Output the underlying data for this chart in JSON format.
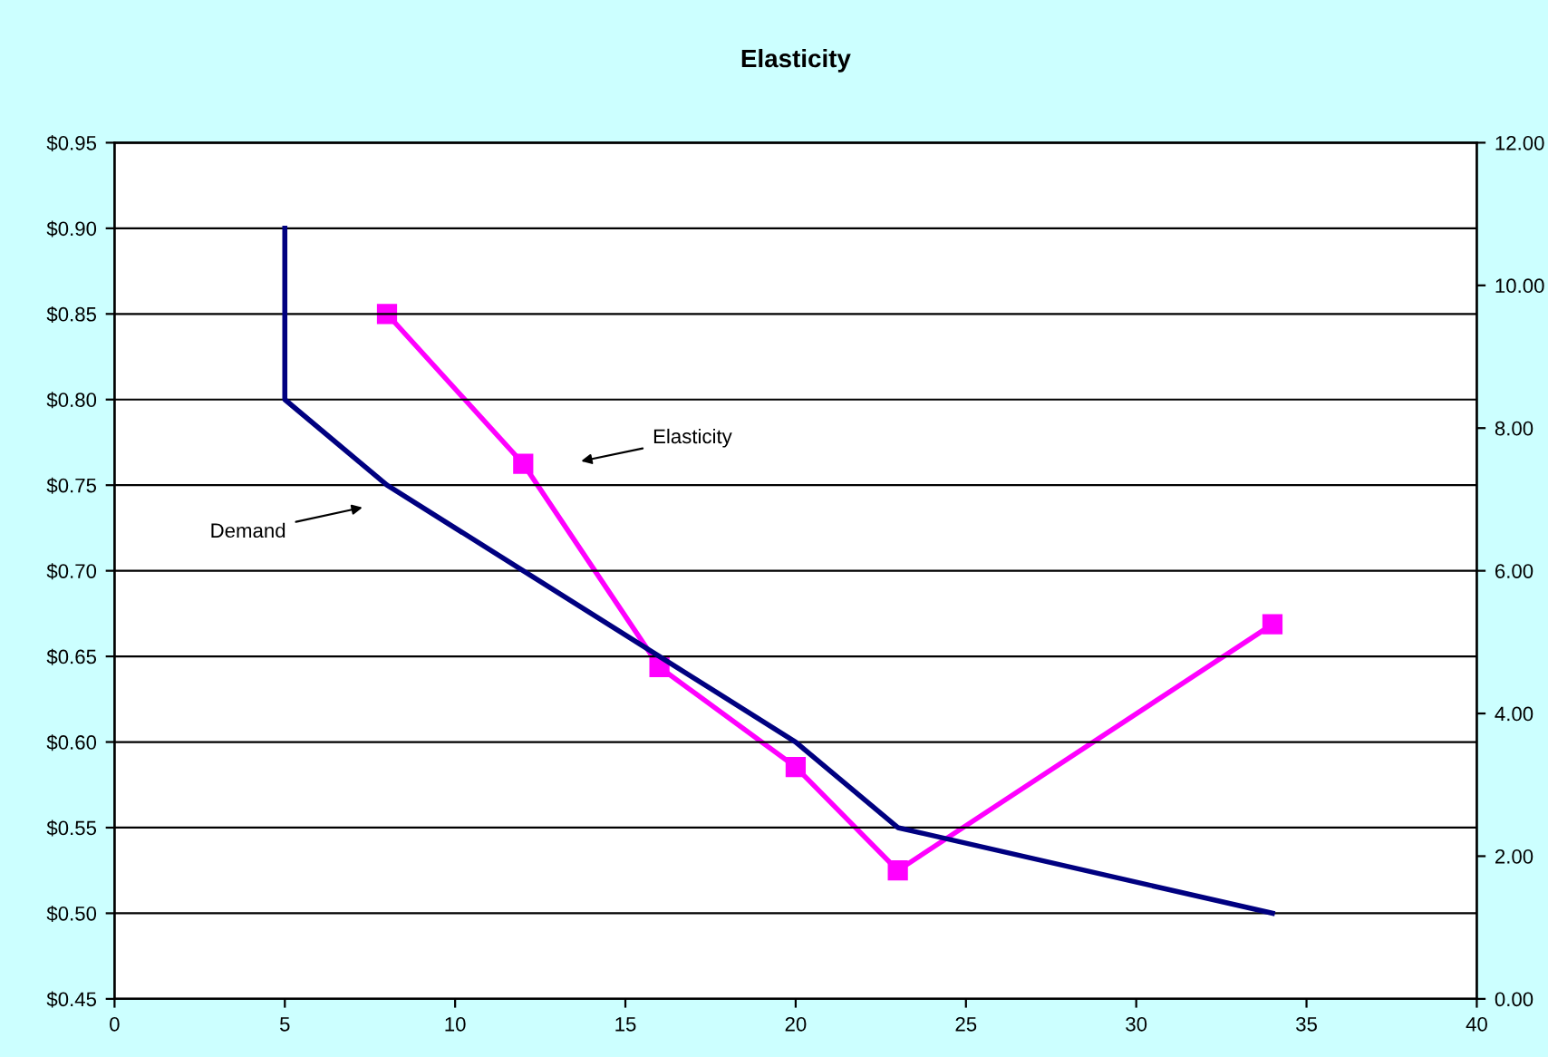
{
  "chart_data": {
    "type": "line",
    "title": "Elasticity",
    "xlim": [
      0,
      40
    ],
    "xticks": [
      0,
      5,
      10,
      15,
      20,
      25,
      30,
      35,
      40
    ],
    "ylim": [
      0.45,
      0.95
    ],
    "yticks": [
      {
        "value": 0.45,
        "label": "$0.45"
      },
      {
        "value": 0.5,
        "label": "$0.50"
      },
      {
        "value": 0.55,
        "label": "$0.55"
      },
      {
        "value": 0.6,
        "label": "$0.60"
      },
      {
        "value": 0.65,
        "label": "$0.65"
      },
      {
        "value": 0.7,
        "label": "$0.70"
      },
      {
        "value": 0.75,
        "label": "$0.75"
      },
      {
        "value": 0.8,
        "label": "$0.80"
      },
      {
        "value": 0.85,
        "label": "$0.85"
      },
      {
        "value": 0.9,
        "label": "$0.90"
      },
      {
        "value": 0.95,
        "label": "$0.95"
      }
    ],
    "y2lim": [
      0,
      12
    ],
    "y2ticks": [
      {
        "value": 0,
        "label": "0.00"
      },
      {
        "value": 2,
        "label": "2.00"
      },
      {
        "value": 4,
        "label": "4.00"
      },
      {
        "value": 6,
        "label": "6.00"
      },
      {
        "value": 8,
        "label": "8.00"
      },
      {
        "value": 10,
        "label": "10.00"
      },
      {
        "value": 12,
        "label": "12.00"
      }
    ],
    "grid": "y",
    "legend": false,
    "series": [
      {
        "color": "#000080",
        "x": [
          5,
          5,
          8,
          12,
          16,
          20,
          23,
          34
        ],
        "values": [
          0.9,
          0.8,
          0.75,
          0.7,
          0.65,
          0.6,
          0.55,
          0.5
        ],
        "marker": "none"
      },
      {
        "color": "#ff00ff",
        "axis": "y2",
        "x": [
          8,
          12,
          16,
          20,
          23,
          34
        ],
        "values": [
          9.6,
          7.5,
          4.65,
          3.25,
          1.8,
          5.25
        ],
        "marker": "square"
      }
    ],
    "annotations": [
      "Elasticity",
      "Demand"
    ]
  }
}
